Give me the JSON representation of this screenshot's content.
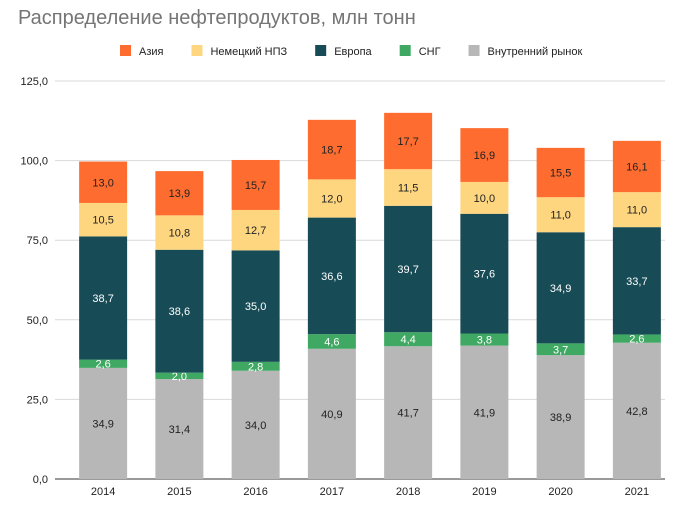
{
  "chart_data": {
    "type": "bar",
    "stacked": true,
    "title": "Распределение нефтепродуктов, млн тонн",
    "categories": [
      "2014",
      "2015",
      "2016",
      "2017",
      "2018",
      "2019",
      "2020",
      "2021"
    ],
    "ylim": [
      0,
      125
    ],
    "yticks": [
      "0,0",
      "25,0",
      "50,0",
      "75,0",
      "100,0",
      "125,0"
    ],
    "ytick_values": [
      0,
      25,
      50,
      75,
      100,
      125
    ],
    "grid": true,
    "legend_placement": "top",
    "legend": [
      "Азия",
      "Немецкий НПЗ",
      "Европа",
      "СНГ",
      "Внутренний рынок"
    ],
    "series": [
      {
        "name": "Внутренний рынок",
        "color": "#b7b7b7",
        "label_color": "#222222",
        "values": [
          34.9,
          31.4,
          34.0,
          40.9,
          41.7,
          41.9,
          38.9,
          42.8
        ]
      },
      {
        "name": "СНГ",
        "color": "#3fa862",
        "label_color": "#ffffff",
        "values": [
          2.6,
          2.0,
          2.8,
          4.6,
          4.4,
          3.8,
          3.7,
          2.6
        ]
      },
      {
        "name": "Европа",
        "color": "#174b55",
        "label_color": "#ffffff",
        "values": [
          38.7,
          38.6,
          35.0,
          36.6,
          39.7,
          37.6,
          34.9,
          33.7
        ]
      },
      {
        "name": "Немецкий НПЗ",
        "color": "#fdd67f",
        "label_color": "#222222",
        "values": [
          10.5,
          10.8,
          12.7,
          12.0,
          11.5,
          10.0,
          11.0,
          11.0
        ]
      },
      {
        "name": "Азия",
        "color": "#fe6d2f",
        "label_color": "#222222",
        "values": [
          13.0,
          13.9,
          15.7,
          18.7,
          17.7,
          16.9,
          15.5,
          16.1
        ]
      }
    ]
  }
}
